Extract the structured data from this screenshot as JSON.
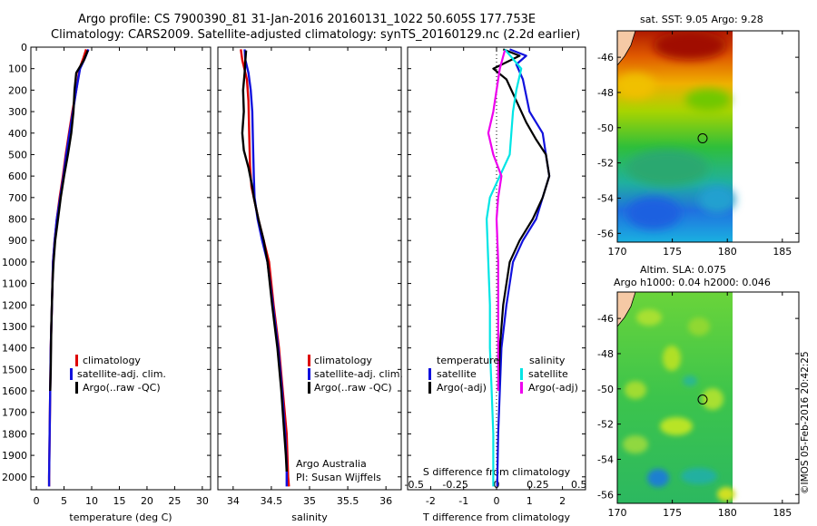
{
  "header": {
    "line1": "Argo profile: CS 7900390_81 31-Jan-2016 20160131_1022 50.605S 177.753E",
    "line2": "Climatology: CARS2009. Satellite-adjusted climatology: synTS_20160129.nc (2.2d earlier)"
  },
  "colors": {
    "climatology": "#dd0000",
    "satellite": "#1111dd",
    "argo": "#000000",
    "sat_salinity": "#00e5e5",
    "argo_salinity_adj": "#ee00ee"
  },
  "legend": {
    "climatology": "climatology",
    "satellite": "satellite-adj. clim.",
    "argo": "Argo(..raw -QC)",
    "diff_head_t": "temperature",
    "diff_head_s": "salinity",
    "diff_sat_t": "satellite",
    "diff_sat_s": "satellite",
    "diff_argo_t": "Argo(-adj)",
    "diff_argo_s": "Argo(-adj)"
  },
  "annotation": {
    "line1": "Argo Australia",
    "line2": "PI: Susan Wijffels"
  },
  "panel_sst_title": "sat. SST: 9.05 Argo: 9.28",
  "panel_sla_title1": "Altim. SLA: 0.075",
  "panel_sla_title2": "Argo h1000: 0.04 h2000: 0.046",
  "credit": "©IMOS 05-Feb-2016 20:42:25",
  "chart_data": [
    {
      "type": "line",
      "name": "temperature",
      "xlabel": "temperature (deg C)",
      "ylabel": "",
      "xlim": [
        -1,
        31.5
      ],
      "ylim": [
        2060,
        0
      ],
      "xticks": [
        0,
        5,
        10,
        15,
        20,
        25,
        30
      ],
      "yticks": [
        0,
        100,
        200,
        300,
        400,
        500,
        600,
        700,
        800,
        900,
        1000,
        1100,
        1200,
        1300,
        1400,
        1500,
        1600,
        1700,
        1800,
        1900,
        2000
      ],
      "series": [
        {
          "name": "climatology",
          "color": "#dd0000",
          "points": [
            [
              9.0,
              10
            ],
            [
              8.5,
              50
            ],
            [
              7.8,
              100
            ],
            [
              7.2,
              200
            ],
            [
              6.5,
              300
            ],
            [
              5.9,
              400
            ],
            [
              5.3,
              500
            ],
            [
              4.8,
              600
            ],
            [
              4.2,
              700
            ],
            [
              3.7,
              800
            ],
            [
              3.3,
              900
            ],
            [
              3.0,
              1000
            ],
            [
              2.8,
              1200
            ],
            [
              2.6,
              1400
            ],
            [
              2.5,
              1600
            ],
            [
              2.4,
              1800
            ],
            [
              2.3,
              2000
            ],
            [
              2.3,
              2045
            ]
          ]
        },
        {
          "name": "satellite-adj. clim.",
          "color": "#1111dd",
          "points": [
            [
              9.4,
              10
            ],
            [
              8.8,
              50
            ],
            [
              7.9,
              100
            ],
            [
              7.2,
              200
            ],
            [
              6.6,
              300
            ],
            [
              6.0,
              400
            ],
            [
              5.4,
              500
            ],
            [
              4.9,
              600
            ],
            [
              4.3,
              700
            ],
            [
              3.7,
              800
            ],
            [
              3.3,
              900
            ],
            [
              3.0,
              1000
            ],
            [
              2.8,
              1200
            ],
            [
              2.6,
              1400
            ],
            [
              2.5,
              1600
            ],
            [
              2.4,
              1800
            ],
            [
              2.3,
              2000
            ],
            [
              2.3,
              2045
            ]
          ]
        },
        {
          "name": "Argo(..raw -QC)",
          "color": "#000000",
          "points": [
            [
              9.3,
              15
            ],
            [
              8.6,
              60
            ],
            [
              7.2,
              120
            ],
            [
              6.9,
              200
            ],
            [
              6.7,
              300
            ],
            [
              6.3,
              400
            ],
            [
              5.7,
              500
            ],
            [
              5.0,
              600
            ],
            [
              4.4,
              700
            ],
            [
              3.9,
              800
            ],
            [
              3.4,
              900
            ],
            [
              3.1,
              1000
            ],
            [
              2.9,
              1100
            ],
            [
              2.7,
              1300
            ],
            [
              2.6,
              1500
            ],
            [
              2.5,
              1600
            ]
          ]
        }
      ]
    },
    {
      "type": "line",
      "name": "salinity",
      "xlabel": "salinity",
      "ylabel": "",
      "xlim": [
        33.8,
        36.2
      ],
      "ylim": [
        2060,
        0
      ],
      "xticks": [
        34,
        34.5,
        35,
        35.5,
        36
      ],
      "series": [
        {
          "name": "climatology",
          "color": "#dd0000",
          "points": [
            [
              34.1,
              10
            ],
            [
              34.12,
              60
            ],
            [
              34.18,
              150
            ],
            [
              34.2,
              250
            ],
            [
              34.21,
              400
            ],
            [
              34.22,
              550
            ],
            [
              34.24,
              650
            ],
            [
              34.27,
              700
            ],
            [
              34.33,
              800
            ],
            [
              34.4,
              900
            ],
            [
              34.47,
              1000
            ],
            [
              34.53,
              1200
            ],
            [
              34.6,
              1400
            ],
            [
              34.65,
              1600
            ],
            [
              34.7,
              1800
            ],
            [
              34.72,
              2000
            ],
            [
              34.73,
              2045
            ]
          ]
        },
        {
          "name": "satellite-adj. clim.",
          "color": "#1111dd",
          "points": [
            [
              34.15,
              10
            ],
            [
              34.16,
              60
            ],
            [
              34.2,
              120
            ],
            [
              34.23,
              200
            ],
            [
              34.25,
              300
            ],
            [
              34.26,
              450
            ],
            [
              34.27,
              600
            ],
            [
              34.28,
              700
            ],
            [
              34.32,
              800
            ],
            [
              34.38,
              900
            ],
            [
              34.45,
              1000
            ],
            [
              34.52,
              1200
            ],
            [
              34.59,
              1400
            ],
            [
              34.64,
              1600
            ],
            [
              34.68,
              1800
            ],
            [
              34.7,
              1950
            ],
            [
              34.7,
              2045
            ]
          ]
        },
        {
          "name": "Argo(..raw -QC)",
          "color": "#000000",
          "points": [
            [
              34.17,
              15
            ],
            [
              34.16,
              60
            ],
            [
              34.15,
              120
            ],
            [
              34.13,
              200
            ],
            [
              34.14,
              300
            ],
            [
              34.12,
              400
            ],
            [
              34.14,
              480
            ],
            [
              34.2,
              560
            ],
            [
              34.25,
              650
            ],
            [
              34.27,
              700
            ],
            [
              34.3,
              750
            ],
            [
              34.33,
              800
            ],
            [
              34.4,
              900
            ],
            [
              34.45,
              1000
            ],
            [
              34.51,
              1200
            ],
            [
              34.58,
              1400
            ],
            [
              34.63,
              1600
            ],
            [
              34.67,
              1800
            ],
            [
              34.69,
              1900
            ],
            [
              34.7,
              1975
            ]
          ]
        }
      ]
    },
    {
      "type": "line",
      "name": "difference",
      "xlabel": "T difference from climatology",
      "xlabel_top": "S difference from climatology",
      "xlim": [
        -2.7,
        2.7
      ],
      "ylim": [
        2060,
        0
      ],
      "xticks": [
        -2,
        -1,
        0,
        1,
        2
      ],
      "xtick_labels": [
        "-2",
        "-1",
        "0",
        "1",
        "2"
      ],
      "xticks_s": [
        -0.5,
        -0.25,
        0,
        0.25,
        0.5
      ],
      "xtick_labels_s": [
        "-0.5",
        "-0.25",
        "0",
        "0.25",
        "0.5"
      ],
      "series": [
        {
          "name": "temperature satellite",
          "color": "#1111dd",
          "units": "T",
          "points": [
            [
              0.4,
              10
            ],
            [
              0.9,
              40
            ],
            [
              0.6,
              80
            ],
            [
              0.8,
              150
            ],
            [
              1.0,
              300
            ],
            [
              1.4,
              400
            ],
            [
              1.5,
              500
            ],
            [
              1.6,
              600
            ],
            [
              1.4,
              700
            ],
            [
              1.2,
              800
            ],
            [
              0.8,
              900
            ],
            [
              0.5,
              1000
            ],
            [
              0.3,
              1200
            ],
            [
              0.15,
              1400
            ],
            [
              0.1,
              1600
            ],
            [
              0.05,
              1800
            ],
            [
              0.02,
              2045
            ]
          ]
        },
        {
          "name": "temperature Argo(-adj)",
          "color": "#000000",
          "units": "T",
          "points": [
            [
              0.2,
              10
            ],
            [
              0.7,
              40
            ],
            [
              -0.1,
              100
            ],
            [
              0.3,
              150
            ],
            [
              0.6,
              250
            ],
            [
              0.9,
              350
            ],
            [
              1.2,
              430
            ],
            [
              1.5,
              500
            ],
            [
              1.6,
              600
            ],
            [
              1.4,
              700
            ],
            [
              1.1,
              800
            ],
            [
              0.7,
              900
            ],
            [
              0.4,
              1000
            ],
            [
              0.2,
              1200
            ],
            [
              0.1,
              1400
            ],
            [
              0.05,
              1600
            ]
          ]
        },
        {
          "name": "salinity satellite",
          "color": "#00e5e5",
          "units": "S",
          "points": [
            [
              0.05,
              10
            ],
            [
              0.15,
              100
            ],
            [
              0.12,
              200
            ],
            [
              0.1,
              300
            ],
            [
              0.09,
              400
            ],
            [
              0.08,
              500
            ],
            [
              0.02,
              600
            ],
            [
              -0.04,
              700
            ],
            [
              -0.06,
              800
            ],
            [
              -0.05,
              1000
            ],
            [
              -0.04,
              1200
            ],
            [
              -0.04,
              1400
            ],
            [
              -0.03,
              1600
            ],
            [
              -0.02,
              1800
            ],
            [
              -0.02,
              2045
            ]
          ]
        },
        {
          "name": "salinity Argo(-adj)",
          "color": "#ee00ee",
          "units": "S",
          "points": [
            [
              0.05,
              15
            ],
            [
              0.02,
              100
            ],
            [
              0.0,
              200
            ],
            [
              -0.02,
              300
            ],
            [
              -0.05,
              400
            ],
            [
              -0.02,
              500
            ],
            [
              0.03,
              600
            ],
            [
              0.01,
              700
            ],
            [
              0.0,
              800
            ],
            [
              0.01,
              1000
            ],
            [
              0.01,
              1200
            ],
            [
              0.01,
              1400
            ],
            [
              0.01,
              1600
            ]
          ]
        }
      ]
    },
    {
      "type": "heatmap",
      "name": "sat. SST map",
      "xlim": [
        170,
        186.5
      ],
      "ylim": [
        -56.5,
        -44.5
      ],
      "xticks": [
        170,
        175,
        180,
        185
      ],
      "yticks": [
        -46,
        -48,
        -50,
        -52,
        -54,
        -56
      ],
      "argo_position": [
        177.753,
        -50.605
      ]
    },
    {
      "type": "heatmap",
      "name": "Altim. SLA map",
      "xlim": [
        170,
        186.5
      ],
      "ylim": [
        -56.5,
        -44.5
      ],
      "xticks": [
        170,
        175,
        180,
        185
      ],
      "yticks": [
        -46,
        -48,
        -50,
        -52,
        -54,
        -56
      ],
      "argo_position": [
        177.753,
        -50.605
      ]
    }
  ]
}
